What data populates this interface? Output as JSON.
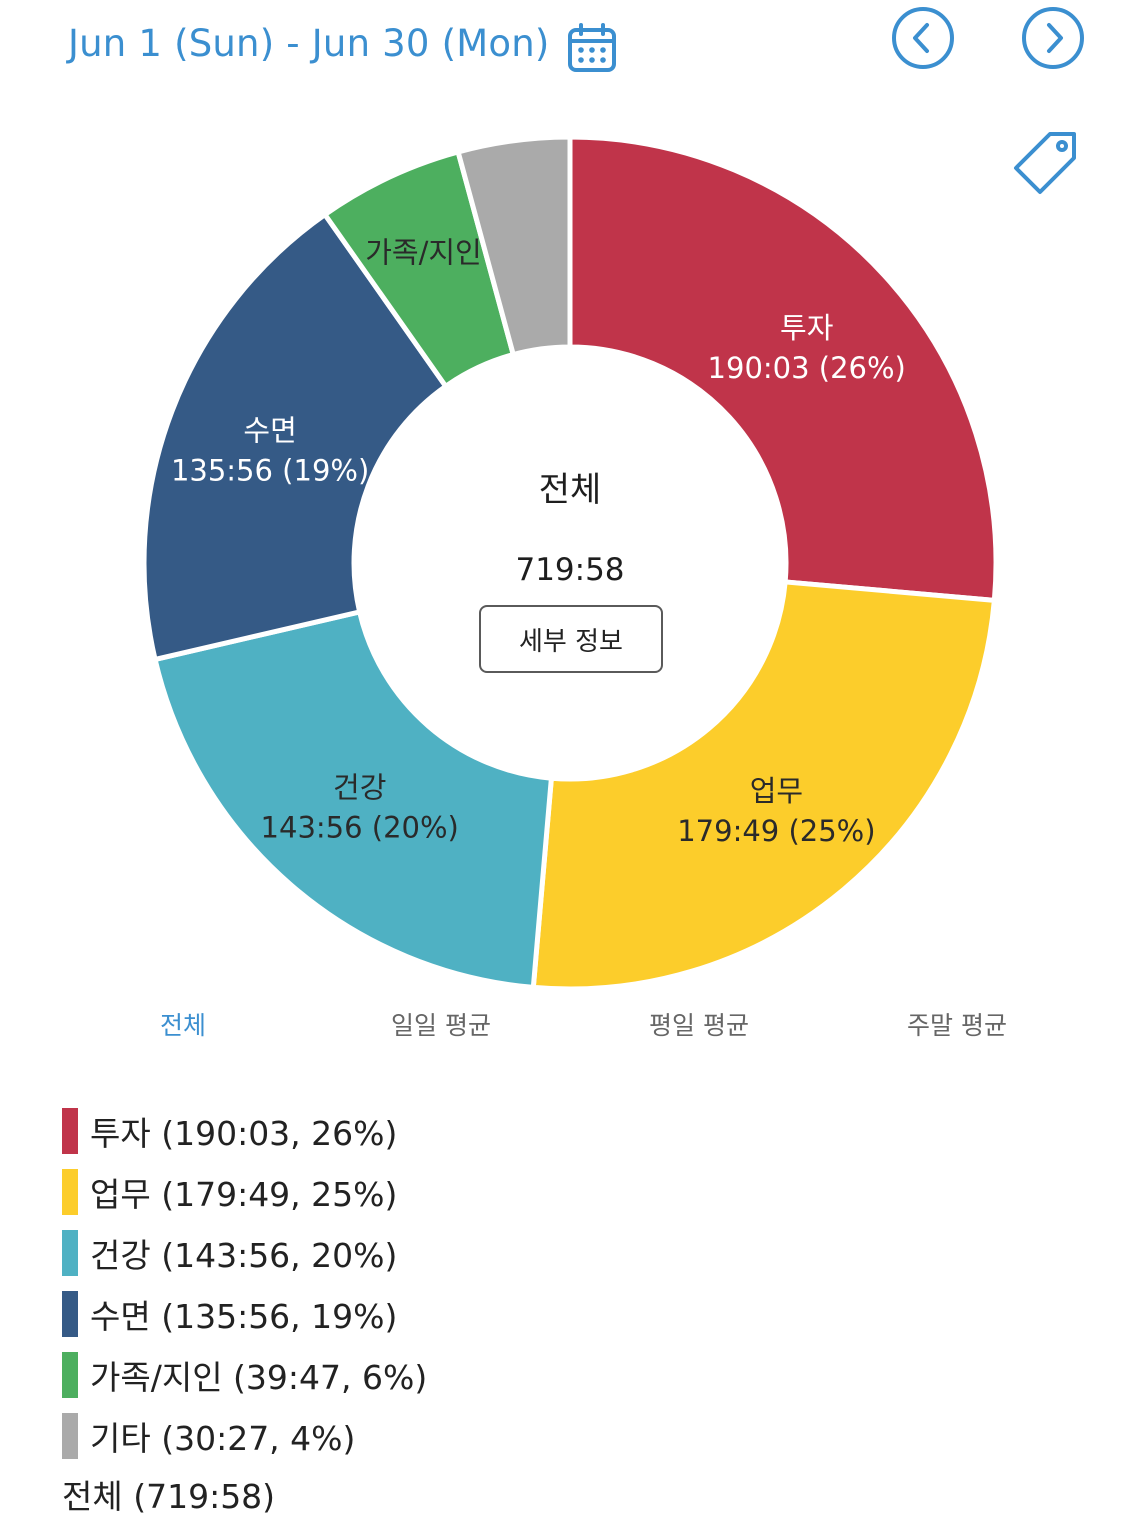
{
  "header": {
    "date_range": "Jun 1 (Sun) - Jun 30 (Mon)"
  },
  "icons": {
    "calendar": "calendar-icon",
    "prev": "chevron-left-circle-icon",
    "next": "chevron-right-circle-icon",
    "tag": "tag-icon",
    "accent_color": "#3b8fd0"
  },
  "chart_data": {
    "type": "pie",
    "donut": true,
    "total_label": "전체",
    "total_value": "719:58",
    "slices": [
      {
        "label": "투자",
        "value_text": "190:03",
        "minutes": 11403,
        "percent": 26,
        "color": "#c0344a",
        "chart_text": "190:03 (26%)",
        "legend_text": "투자 (190:03, 26%)",
        "label_dark": false
      },
      {
        "label": "업무",
        "value_text": "179:49",
        "minutes": 10789,
        "percent": 25,
        "color": "#fccd2b",
        "chart_text": "179:49 (25%)",
        "legend_text": "업무 (179:49, 25%)",
        "label_dark": true
      },
      {
        "label": "건강",
        "value_text": "143:56",
        "minutes": 8636,
        "percent": 20,
        "color": "#4fb1c3",
        "chart_text": "143:56 (20%)",
        "legend_text": "건강 (143:56, 20%)",
        "label_dark": true
      },
      {
        "label": "수면",
        "value_text": "135:56",
        "minutes": 8156,
        "percent": 19,
        "color": "#355a86",
        "chart_text": "135:56 (19%)",
        "legend_text": "수면 (135:56, 19%)",
        "label_dark": false
      },
      {
        "label": "가족/지인",
        "value_text": "39:47",
        "minutes": 2387,
        "percent": 6,
        "color": "#4daf5f",
        "chart_text": "",
        "legend_text": "가족/지인 (39:47, 6%)",
        "label_dark": true
      },
      {
        "label": "기타",
        "value_text": "30:27",
        "minutes": 1827,
        "percent": 4,
        "color": "#aaaaaa",
        "chart_text": "",
        "legend_text": "기타 (30:27, 4%)",
        "label_dark": true
      }
    ]
  },
  "center": {
    "title": "전체",
    "total": "719:58",
    "detail_button": "세부 정보"
  },
  "tabs": [
    {
      "label": "전체",
      "active": true
    },
    {
      "label": "일일 평균",
      "active": false
    },
    {
      "label": "평일 평균",
      "active": false
    },
    {
      "label": "주말 평균",
      "active": false
    }
  ],
  "legend": {
    "total_text": "전체 (719:58)"
  }
}
